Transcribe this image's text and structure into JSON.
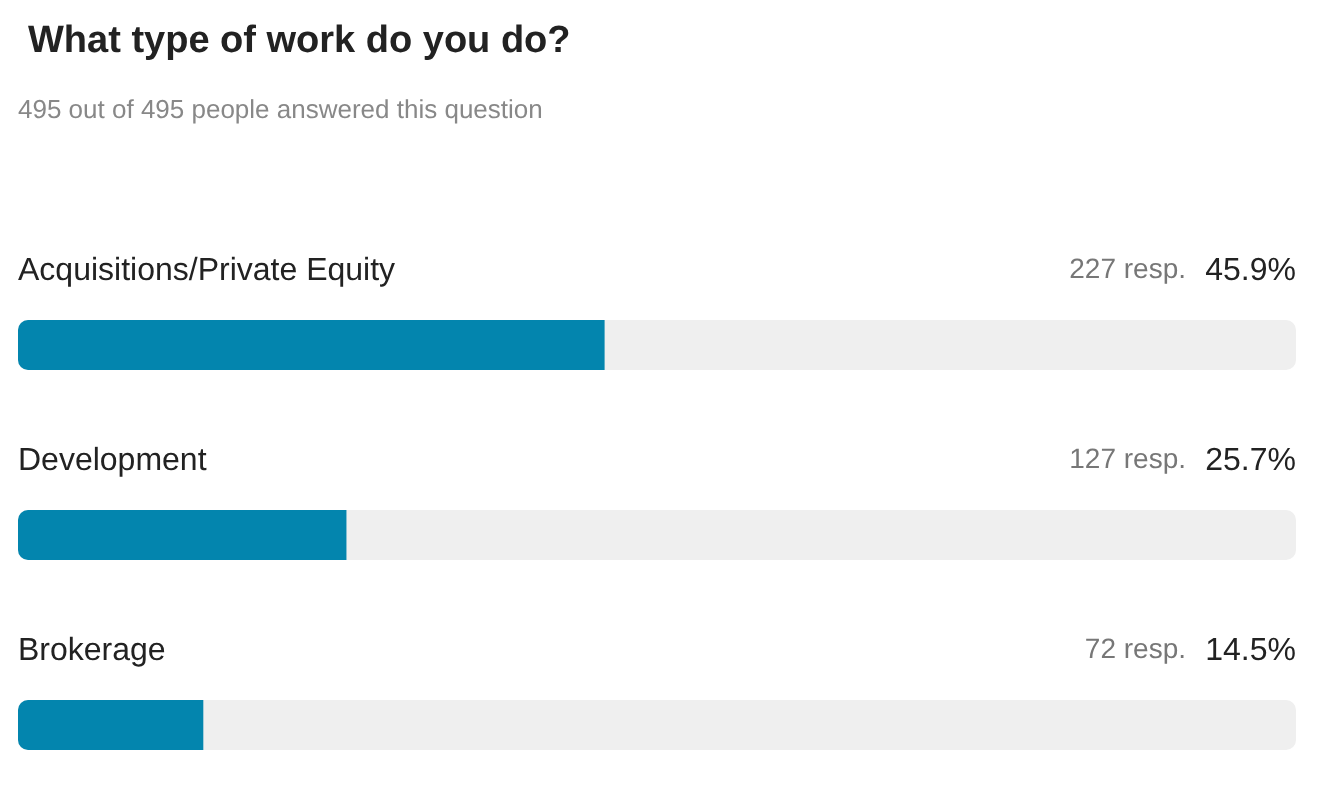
{
  "chart_data": {
    "type": "bar",
    "orientation": "horizontal",
    "title": "What type of work do you do?",
    "subtitle": "495 out of 495 people answered this question",
    "categories": [
      "Acquisitions/Private Equity",
      "Development",
      "Brokerage"
    ],
    "values": [
      45.9,
      25.7,
      14.5
    ],
    "color": "#0385ae",
    "value_labels": [
      "45.9%",
      "25.7%",
      "14.5%"
    ],
    "annotations": [
      "227 resp.",
      "127 resp.",
      "72 resp."
    ],
    "xlim": [
      0,
      100
    ],
    "tick_labels": "y"
  }
}
